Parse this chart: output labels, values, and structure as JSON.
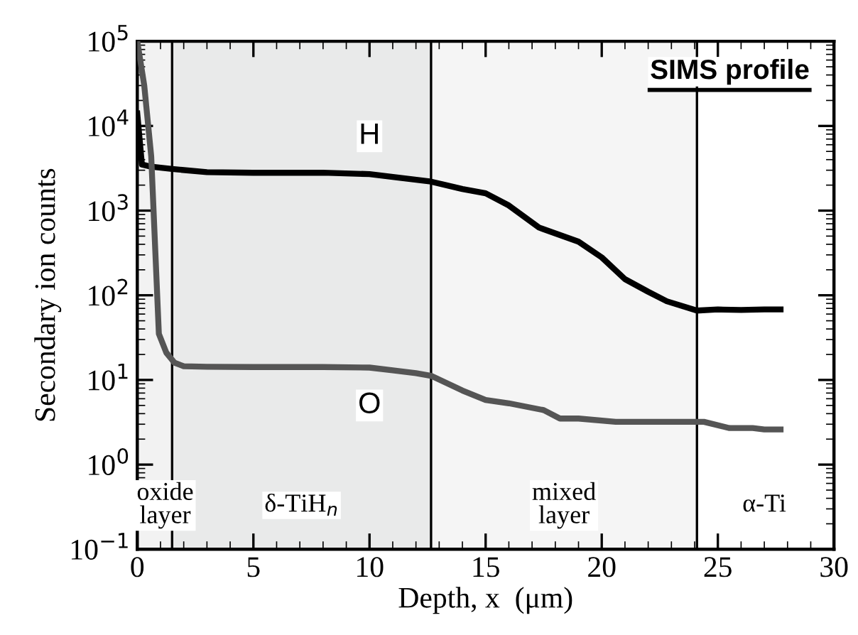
{
  "chart_data": {
    "type": "line",
    "xlabel": "Depth, x  (μm)",
    "ylabel": "Secondary ion counts",
    "annotations": [
      "SIMS profile",
      {
        "text": "α-Ti",
        "x": 27,
        "y": 0.33
      }
    ],
    "log": "y",
    "grid": false,
    "legend": false,
    "marker": "none",
    "line_style": "solid",
    "xlim": [
      0,
      30
    ],
    "xticks": [
      0,
      5,
      10,
      15,
      20,
      25,
      30
    ],
    "ylim": [
      0.1,
      100000
    ],
    "yticks": [
      {
        "value": 0.1,
        "label": "10$^{−1}$"
      },
      {
        "value": 1,
        "label": "10$^{0}$"
      },
      {
        "value": 10,
        "label": "10$^{1}$"
      },
      {
        "value": 100,
        "label": "10$^{2}$"
      },
      {
        "value": 1000,
        "label": "10$^{3}$"
      },
      {
        "value": 10000,
        "label": "10$^{4}$"
      },
      {
        "value": 100000,
        "label": "10$^{5}$"
      }
    ],
    "bands": [
      {
        "axis": "x",
        "from": 0,
        "to": 1.5,
        "label": "oxide layer",
        "color": "#f2f2f2"
      },
      {
        "axis": "x",
        "from": 1.5,
        "to": 12.65,
        "label": "δ-TiH$_{n}$",
        "color": "#e9eaea"
      },
      {
        "axis": "x",
        "from": 12.65,
        "to": 24.1,
        "label": "mixed layer",
        "color": "#f5f5f5"
      }
    ],
    "ref_lines": [
      {
        "axis": "x",
        "value": 1.5,
        "color": "#000000"
      },
      {
        "axis": "x",
        "value": 12.65,
        "color": "#000000"
      },
      {
        "axis": "x",
        "value": 24.1,
        "color": "#000000"
      }
    ],
    "series": [
      {
        "name": "H",
        "color": "#000000",
        "x": [
          0,
          0.2,
          0.6,
          1.5,
          3,
          5,
          8,
          10,
          12.65,
          14,
          15,
          16,
          17.3,
          19,
          20,
          21,
          22,
          22.8,
          24.1,
          25,
          26,
          27,
          27.7
        ],
        "values": [
          14000,
          3500,
          3300,
          3100,
          2850,
          2800,
          2800,
          2700,
          2200,
          1800,
          1600,
          1150,
          630,
          430,
          280,
          155,
          110,
          85,
          66,
          68,
          67,
          68,
          68
        ]
      },
      {
        "name": "O",
        "color": "#555555",
        "x": [
          0,
          0.3,
          0.6,
          0.93,
          1.25,
          1.6,
          2,
          3,
          5,
          8,
          10,
          11,
          12,
          12.65,
          14,
          15,
          16,
          17.5,
          18.2,
          19,
          20.6,
          22,
          24.4,
          25.5,
          26.5,
          27,
          27.7
        ],
        "values": [
          100000,
          30000,
          4400,
          35,
          21,
          16,
          14.5,
          14.3,
          14.2,
          14.2,
          14,
          13,
          12,
          11.2,
          7.5,
          5.8,
          5.3,
          4.4,
          3.5,
          3.5,
          3.2,
          3.2,
          3.2,
          2.7,
          2.7,
          2.6,
          2.6
        ]
      }
    ]
  }
}
